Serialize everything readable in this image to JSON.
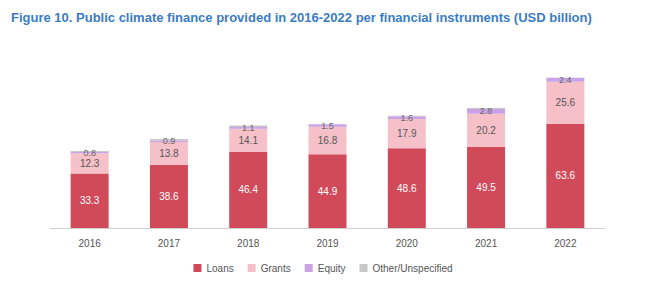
{
  "chart_data": {
    "type": "bar",
    "title": "Figure 10. Public climate finance provided in 2016-2022 per financial instruments (USD billion)",
    "categories": [
      "2016",
      "2017",
      "2018",
      "2019",
      "2020",
      "2021",
      "2022"
    ],
    "series": [
      {
        "name": "Loans",
        "color": "#d04a5a",
        "values": [
          33.3,
          38.6,
          46.4,
          44.9,
          48.6,
          49.5,
          63.6
        ]
      },
      {
        "name": "Grants",
        "color": "#f6c0c9",
        "values": [
          12.3,
          13.8,
          14.1,
          16.8,
          17.9,
          20.2,
          25.6
        ]
      },
      {
        "name": "Equity",
        "color": "#c9a3e6",
        "values": [
          0.8,
          0.9,
          1.1,
          1.5,
          1.6,
          2.8,
          2.4
        ]
      },
      {
        "name": "Other/Unspecified",
        "color": "#c8c8c8",
        "values": [
          0.5,
          0.9,
          0.9,
          0.2,
          0.3,
          0.6,
          0.0
        ],
        "data_labels": false
      }
    ],
    "totals": [
      46.9,
      54.2,
      62.5,
      63.4,
      68.4,
      73.1,
      91.6
    ],
    "ylim": [
      0,
      100
    ],
    "yticks": [
      0,
      100
    ],
    "stacked": true,
    "data_labels": true,
    "grid": false,
    "legend": "bottom",
    "tick_labels": "x"
  }
}
